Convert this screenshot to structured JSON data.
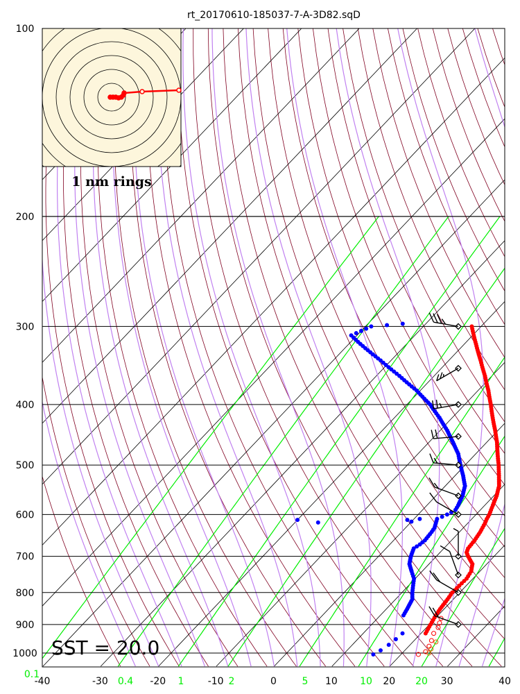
{
  "chart_data": {
    "type": "skew-t log-p sounding",
    "title": "rt_20170610-185037-7-A-3D82.sqD",
    "pressure_ticks": [
      {
        "p": 100,
        "label": "100"
      },
      {
        "p": 200,
        "label": "200"
      },
      {
        "p": 300,
        "label": "300"
      },
      {
        "p": 400,
        "label": "400"
      },
      {
        "p": 500,
        "label": "500"
      },
      {
        "p": 600,
        "label": "600"
      },
      {
        "p": 700,
        "label": "700"
      },
      {
        "p": 800,
        "label": "800"
      },
      {
        "p": 900,
        "label": "900"
      },
      {
        "p": 1000,
        "label": "1000"
      }
    ],
    "temperature_ticks": [
      "-40",
      "-30",
      "-20",
      "-10",
      "0",
      "10",
      "20",
      "30",
      "40"
    ],
    "mixing_ratio_labels": [
      "0.1",
      "0.4",
      "1",
      "2",
      "5",
      "10",
      "20"
    ],
    "pressure_range": [
      100,
      1050
    ],
    "temperature_range_at_bottom": [
      -40,
      40
    ],
    "sst_label": "SST = 20.0",
    "inset_label": "1 nm rings",
    "colors": {
      "temperature": "#ff0000",
      "dewpoint": "#0000ff",
      "dry_adiabat": "#800020",
      "moist_adiabat": "#c080f0",
      "mixing_ratio": "#00ee00",
      "isotherm": "#000000",
      "inset_bg": "#fdf6dc",
      "surface_markers": "#e06000"
    },
    "temperature_profile": [
      [
        930,
        20.8
      ],
      [
        900,
        20.2
      ],
      [
        870,
        19.6
      ],
      [
        850,
        19.3
      ],
      [
        820,
        19.0
      ],
      [
        800,
        18.7
      ],
      [
        780,
        18.8
      ],
      [
        760,
        18.9
      ],
      [
        740,
        18.5
      ],
      [
        720,
        17.5
      ],
      [
        700,
        15.5
      ],
      [
        690,
        14.6
      ],
      [
        680,
        14.2
      ],
      [
        670,
        14.1
      ],
      [
        660,
        14.0
      ],
      [
        650,
        13.8
      ],
      [
        640,
        13.6
      ],
      [
        630,
        13.3
      ],
      [
        620,
        13.0
      ],
      [
        610,
        12.6
      ],
      [
        600,
        12.3
      ],
      [
        580,
        11.4
      ],
      [
        560,
        10.5
      ],
      [
        540,
        9.3
      ],
      [
        520,
        7.6
      ],
      [
        500,
        5.8
      ],
      [
        480,
        3.8
      ],
      [
        460,
        1.8
      ],
      [
        440,
        -0.5
      ],
      [
        420,
        -3.0
      ],
      [
        400,
        -5.5
      ],
      [
        380,
        -8.2
      ],
      [
        360,
        -11.2
      ],
      [
        340,
        -14.5
      ],
      [
        320,
        -18.0
      ],
      [
        310,
        -19.8
      ],
      [
        300,
        -21.6
      ]
    ],
    "dewpoint_profile": [
      [
        870,
        14.0
      ],
      [
        850,
        13.6
      ],
      [
        820,
        12.9
      ],
      [
        800,
        11.8
      ],
      [
        780,
        10.8
      ],
      [
        760,
        9.8
      ],
      [
        740,
        8.2
      ],
      [
        720,
        6.6
      ],
      [
        700,
        5.6
      ],
      [
        680,
        4.8
      ],
      [
        670,
        5.2
      ],
      [
        660,
        5.4
      ],
      [
        640,
        5.2
      ],
      [
        630,
        5.0
      ],
      [
        620,
        4.5
      ],
      [
        610,
        4.0
      ],
      [
        600,
        5.0
      ],
      [
        590,
        5.7
      ],
      [
        580,
        5.4
      ],
      [
        560,
        4.6
      ],
      [
        540,
        3.4
      ],
      [
        520,
        1.4
      ],
      [
        500,
        -0.8
      ],
      [
        480,
        -3.0
      ],
      [
        460,
        -5.8
      ],
      [
        440,
        -8.8
      ],
      [
        420,
        -12.2
      ],
      [
        400,
        -16.0
      ],
      [
        380,
        -20.6
      ],
      [
        360,
        -26.0
      ],
      [
        340,
        -31.8
      ],
      [
        320,
        -38.0
      ],
      [
        310,
        -41.0
      ],
      [
        300,
        -39.0
      ],
      [
        297,
        -34.0
      ]
    ],
    "dewpoint_outliers": [
      [
        612,
        -20
      ],
      [
        618,
        -16
      ],
      [
        612,
        -1
      ],
      [
        616,
        0
      ],
      [
        610,
        1
      ]
    ],
    "wind_barbs": [
      {
        "p": 300,
        "dir": 260,
        "speed_kt": 35
      },
      {
        "p": 350,
        "dir": 300,
        "speed_kt": 25
      },
      {
        "p": 400,
        "dir": 280,
        "speed_kt": 25
      },
      {
        "p": 450,
        "dir": 275,
        "speed_kt": 20
      },
      {
        "p": 500,
        "dir": 265,
        "speed_kt": 15
      },
      {
        "p": 560,
        "dir": 250,
        "speed_kt": 15
      },
      {
        "p": 600,
        "dir": 240,
        "speed_kt": 10
      },
      {
        "p": 700,
        "dir": 180,
        "speed_kt": 5
      },
      {
        "p": 750,
        "dir": 200,
        "speed_kt": 10
      },
      {
        "p": 800,
        "dir": 240,
        "speed_kt": 20
      },
      {
        "p": 900,
        "dir": 250,
        "speed_kt": 20
      }
    ]
  }
}
